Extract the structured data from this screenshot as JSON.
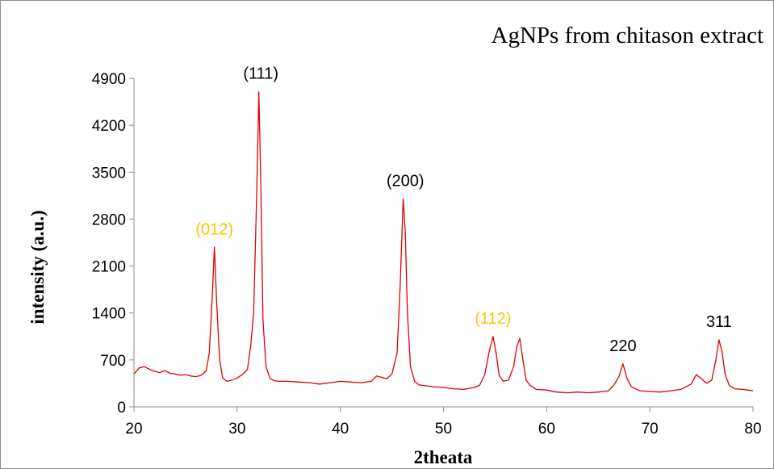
{
  "chart_data": {
    "type": "line",
    "title": "AgNPs from chitason extract",
    "xlabel": "2theata",
    "ylabel": "intensity (a.u.)",
    "xlim": [
      20,
      80
    ],
    "ylim": [
      0,
      4900
    ],
    "xticks": [
      20,
      30,
      40,
      50,
      60,
      70,
      80
    ],
    "yticks": [
      0,
      700,
      1400,
      2100,
      2800,
      3500,
      4200,
      4900
    ],
    "grid": false,
    "legend": "none",
    "line_color": "#e00000",
    "series": [
      {
        "x": [
          20,
          20.5,
          21,
          21.5,
          22,
          22.5,
          23,
          23.5,
          24,
          24.5,
          25,
          25.5,
          26,
          26.5,
          27,
          27.3,
          27.6,
          27.8,
          28.0,
          28.3,
          28.6,
          29,
          29.5,
          30,
          30.5,
          31,
          31.3,
          31.6,
          31.9,
          32.1,
          32.3,
          32.5,
          32.8,
          33.2,
          33.6,
          34,
          35,
          36,
          37,
          38,
          39,
          40,
          41,
          42,
          43,
          43.5,
          44,
          44.5,
          45,
          45.5,
          45.8,
          46.1,
          46.3,
          46.5,
          46.8,
          47.2,
          47.6,
          48,
          49,
          50,
          51,
          52,
          53,
          53.5,
          54,
          54.4,
          54.8,
          55.1,
          55.4,
          55.8,
          56.3,
          56.8,
          57.1,
          57.4,
          57.7,
          58,
          58.4,
          59,
          60,
          61,
          62,
          63,
          64,
          65,
          66,
          66.5,
          67,
          67.4,
          67.8,
          68.2,
          69,
          70,
          71,
          72,
          73,
          74,
          74.5,
          75,
          75.5,
          76,
          76.4,
          76.7,
          77,
          77.3,
          77.7,
          78.2,
          79,
          79.5,
          80
        ],
        "y": [
          490,
          580,
          600,
          560,
          530,
          510,
          540,
          500,
          490,
          470,
          480,
          460,
          450,
          470,
          540,
          800,
          1700,
          2380,
          1600,
          700,
          430,
          380,
          400,
          430,
          480,
          560,
          900,
          1400,
          3200,
          4700,
          3300,
          1300,
          600,
          420,
          390,
          380,
          380,
          370,
          360,
          340,
          360,
          380,
          370,
          360,
          380,
          460,
          440,
          420,
          490,
          800,
          1800,
          3100,
          2600,
          1400,
          600,
          380,
          330,
          320,
          300,
          290,
          270,
          260,
          290,
          320,
          480,
          800,
          1050,
          800,
          470,
          380,
          400,
          600,
          900,
          1020,
          700,
          400,
          320,
          260,
          250,
          220,
          210,
          220,
          210,
          220,
          240,
          320,
          450,
          640,
          420,
          300,
          240,
          230,
          220,
          240,
          260,
          340,
          480,
          420,
          350,
          400,
          700,
          1000,
          820,
          480,
          320,
          270,
          260,
          250,
          240
        ]
      }
    ],
    "annotations": [
      {
        "text": "(111)",
        "x": 32.3,
        "y": 4700,
        "color": "#000000"
      },
      {
        "text": "(012)",
        "x": 27.8,
        "y": 2380,
        "color": "#ffc000"
      },
      {
        "text": "(200)",
        "x": 46.3,
        "y": 3100,
        "color": "#000000"
      },
      {
        "text": "(112)",
        "x": 54.8,
        "y": 1050,
        "color": "#ffc000"
      },
      {
        "text": "220",
        "x": 67.4,
        "y": 640,
        "color": "#000000"
      },
      {
        "text": "311",
        "x": 76.7,
        "y": 1000,
        "color": "#000000"
      }
    ]
  }
}
